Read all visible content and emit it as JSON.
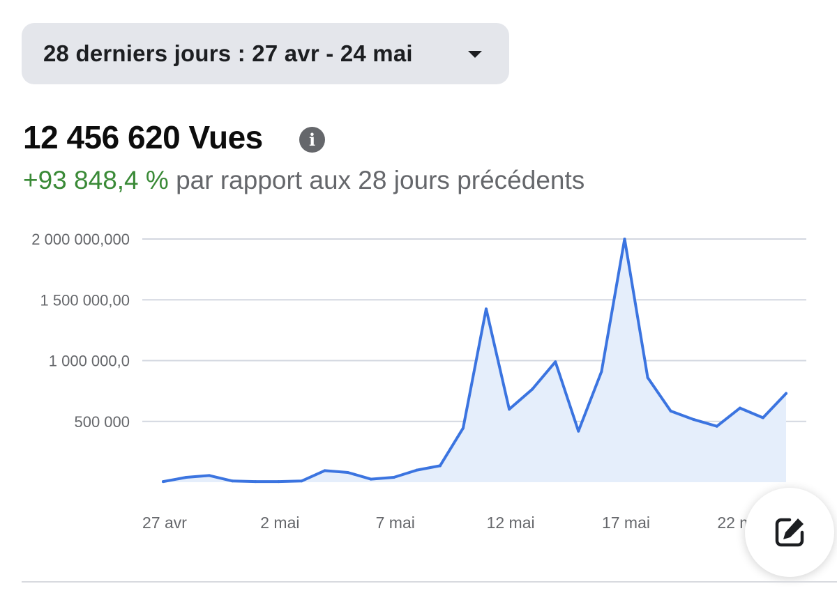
{
  "filter": {
    "date_range_label": "28 derniers jours : 27 avr - 24 mai"
  },
  "summary": {
    "total_views": "12 456 620 Vues",
    "delta": "+93 848,4 %",
    "comparison_text": " par rapport aux 28 jours précédents"
  },
  "colors": {
    "line": "#3b74e0",
    "fill": "#e5eefb",
    "grid": "#d3d7e0",
    "delta": "#3a8a37"
  },
  "icons": {
    "info": "info-icon",
    "caret": "caret-down-icon",
    "edit": "edit-icon"
  },
  "chart_data": {
    "type": "area",
    "title": "",
    "xlabel": "",
    "ylabel": "",
    "ylim": [
      0,
      2000000
    ],
    "grid": true,
    "y_ticks": [
      {
        "value": 2000000,
        "label": "2 000 000,000"
      },
      {
        "value": 1500000,
        "label": "1 500 000,00"
      },
      {
        "value": 1000000,
        "label": "1 000 000,0"
      },
      {
        "value": 500000,
        "label": "500 000"
      }
    ],
    "x_ticks": [
      {
        "index": 0,
        "label": "27 avr"
      },
      {
        "index": 5,
        "label": "2 mai"
      },
      {
        "index": 10,
        "label": "7 mai"
      },
      {
        "index": 15,
        "label": "12 mai"
      },
      {
        "index": 20,
        "label": "17 mai"
      },
      {
        "index": 25,
        "label": "22 mai"
      }
    ],
    "x": [
      "27 avr",
      "28 avr",
      "29 avr",
      "30 avr",
      "1 mai",
      "2 mai",
      "3 mai",
      "4 mai",
      "5 mai",
      "6 mai",
      "7 mai",
      "8 mai",
      "9 mai",
      "10 mai",
      "11 mai",
      "12 mai",
      "13 mai",
      "14 mai",
      "15 mai",
      "16 mai",
      "17 mai",
      "18 mai",
      "19 mai",
      "20 mai",
      "21 mai",
      "22 mai",
      "23 mai",
      "24 mai"
    ],
    "series": [
      {
        "values": [
          5000,
          40000,
          55000,
          10000,
          5000,
          5000,
          10000,
          95000,
          80000,
          25000,
          40000,
          100000,
          135000,
          445000,
          1425000,
          600000,
          765000,
          990000,
          420000,
          910000,
          2000000,
          860000,
          585000,
          515000,
          460000,
          610000,
          530000,
          730000
        ]
      }
    ]
  }
}
